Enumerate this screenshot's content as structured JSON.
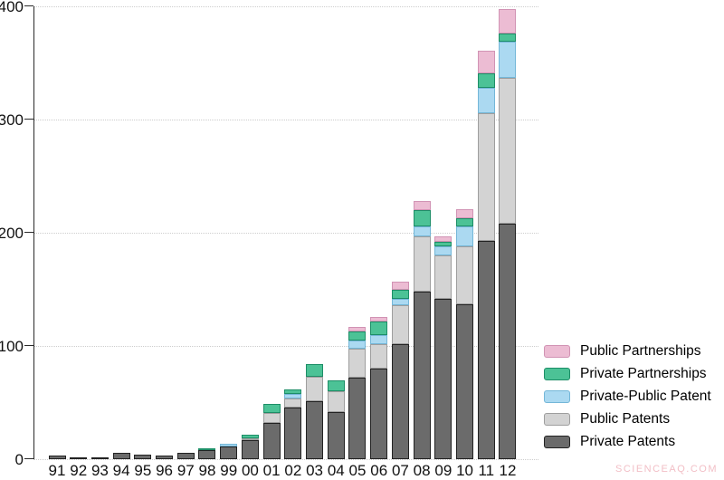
{
  "watermark": "SCIENCEAQ.COM",
  "axes": {
    "y_tick_labels": [
      "0",
      "100",
      "200",
      "300",
      "400"
    ],
    "x_tick_labels": [
      "91",
      "92",
      "93",
      "94",
      "95",
      "96",
      "97",
      "98",
      "99",
      "00",
      "01",
      "02",
      "03",
      "04",
      "05",
      "06",
      "07",
      "08",
      "09",
      "10",
      "11",
      "12"
    ]
  },
  "legend": {
    "items": [
      {
        "label": "Public Partnerships",
        "fill": "#ecbcd3",
        "stroke": "#d193b4"
      },
      {
        "label": "Private Partnerships",
        "fill": "#4cc296",
        "stroke": "#1d8e67"
      },
      {
        "label": "Private-Public Patent",
        "fill": "#abd9f1",
        "stroke": "#74b7d8"
      },
      {
        "label": "Public Patents",
        "fill": "#d3d3d3",
        "stroke": "#9e9e9e"
      },
      {
        "label": "Private Patents",
        "fill": "#6b6b6b",
        "stroke": "#222222"
      }
    ]
  },
  "chart_data": {
    "type": "bar",
    "stacked": true,
    "title": "",
    "xlabel": "",
    "ylabel": "",
    "categories": [
      "91",
      "92",
      "93",
      "94",
      "95",
      "96",
      "97",
      "98",
      "99",
      "00",
      "01",
      "02",
      "03",
      "04",
      "05",
      "06",
      "07",
      "08",
      "09",
      "10",
      "11",
      "12"
    ],
    "ylim": [
      0,
      400
    ],
    "yticks": [
      0,
      100,
      200,
      300,
      400
    ],
    "grid": "horizontal-dotted",
    "legend_position": "right-bottom",
    "series": [
      {
        "name": "Private Patents",
        "fill": "#6b6b6b",
        "stroke": "#222222",
        "values": [
          3,
          1,
          1,
          6,
          4,
          3,
          6,
          8,
          11,
          17,
          32,
          46,
          51,
          42,
          72,
          80,
          102,
          148,
          142,
          137,
          193,
          208
        ]
      },
      {
        "name": "Public Patents",
        "fill": "#d3d3d3",
        "stroke": "#9e9e9e",
        "values": [
          0,
          0,
          0,
          0,
          0,
          0,
          0,
          0,
          0,
          1,
          9,
          8,
          22,
          18,
          26,
          22,
          34,
          49,
          38,
          51,
          113,
          129
        ]
      },
      {
        "name": "Private-Public Patent",
        "fill": "#abd9f1",
        "stroke": "#74b7d8",
        "values": [
          0,
          0,
          0,
          0,
          0,
          0,
          0,
          0,
          3,
          0,
          0,
          4,
          0,
          0,
          7,
          8,
          6,
          9,
          8,
          18,
          22,
          32
        ]
      },
      {
        "name": "Private Partnerships",
        "fill": "#4cc296",
        "stroke": "#1d8e67",
        "values": [
          0,
          0,
          0,
          0,
          0,
          0,
          0,
          2,
          0,
          4,
          8,
          4,
          11,
          10,
          8,
          12,
          8,
          14,
          4,
          7,
          13,
          7
        ]
      },
      {
        "name": "Public Partnerships",
        "fill": "#ecbcd3",
        "stroke": "#d193b4",
        "values": [
          0,
          0,
          0,
          0,
          0,
          0,
          0,
          0,
          0,
          0,
          0,
          0,
          0,
          0,
          4,
          4,
          7,
          8,
          5,
          8,
          20,
          22
        ]
      }
    ]
  }
}
